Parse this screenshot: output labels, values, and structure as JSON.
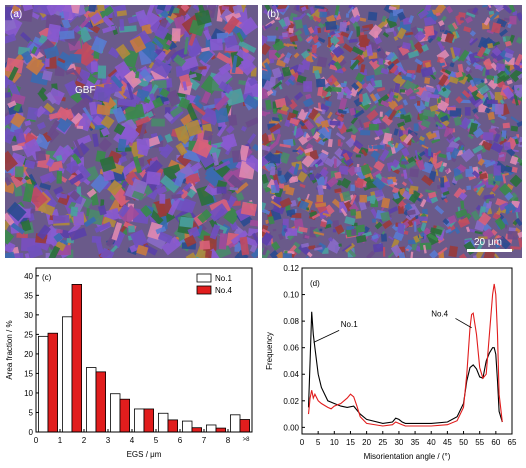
{
  "panels": {
    "a_label": "(a)",
    "a_annotation": "GBF",
    "b_label": "(b)",
    "b_scalebar": "20 μm"
  },
  "chart_data": [
    {
      "type": "bar",
      "panel_label": "(c)",
      "xlabel": "EGS / μm",
      "ylabel": "Area fraction / %",
      "categories": [
        "0-1",
        "1-2",
        "2-3",
        "3-4",
        "4-5",
        "5-6",
        "6-7",
        "7-8",
        ">8"
      ],
      "x_ticks": [
        "0",
        "1",
        "2",
        "3",
        "4",
        "5",
        "6",
        "7",
        "8"
      ],
      "x_extra_tick": ">8",
      "y_ticks": [
        "0",
        "5",
        "10",
        "15",
        "20",
        "25",
        "30",
        "35",
        "40"
      ],
      "ylim": [
        0,
        42
      ],
      "xlim": [
        0,
        9
      ],
      "legend_position": "top-right",
      "series": [
        {
          "name": "No.1",
          "color": "#ffffff",
          "values": [
            24.5,
            29.5,
            16.5,
            9.8,
            5.9,
            4.8,
            2.8,
            1.8,
            4.4
          ]
        },
        {
          "name": "No.4",
          "color": "#e11d1d",
          "values": [
            25.3,
            37.8,
            15.4,
            8.4,
            5.9,
            3.1,
            1.1,
            1.0,
            3.2
          ]
        }
      ]
    },
    {
      "type": "line",
      "panel_label": "(d)",
      "xlabel": "Misorientation angle / (°)",
      "ylabel": "Frequency",
      "x_ticks": [
        "0",
        "5",
        "10",
        "15",
        "20",
        "25",
        "30",
        "35",
        "40",
        "45",
        "50",
        "55",
        "60",
        "65"
      ],
      "y_ticks": [
        "0.00",
        "0.02",
        "0.04",
        "0.06",
        "0.08",
        "0.10",
        "0.12"
      ],
      "xlim": [
        0,
        65
      ],
      "ylim": [
        -0.005,
        0.12
      ],
      "series": [
        {
          "name": "No.1",
          "color": "#000000",
          "x": [
            2,
            2.5,
            3,
            3.5,
            4,
            5,
            6,
            8,
            10,
            12,
            14,
            16,
            18,
            20,
            25,
            28,
            29,
            30,
            31,
            32,
            35,
            40,
            45,
            48,
            50,
            51,
            52,
            53,
            54,
            55,
            56,
            57,
            58,
            59,
            59.5,
            60,
            60.5,
            61,
            62
          ],
          "y": [
            0.015,
            0.05,
            0.087,
            0.07,
            0.06,
            0.04,
            0.03,
            0.02,
            0.018,
            0.016,
            0.015,
            0.016,
            0.01,
            0.006,
            0.003,
            0.004,
            0.007,
            0.006,
            0.004,
            0.003,
            0.003,
            0.003,
            0.004,
            0.008,
            0.018,
            0.035,
            0.045,
            0.047,
            0.044,
            0.038,
            0.037,
            0.05,
            0.056,
            0.06,
            0.06,
            0.055,
            0.035,
            0.012,
            0.004
          ]
        },
        {
          "name": "No.4",
          "color": "#e11d1d",
          "x": [
            2,
            2.5,
            3,
            3.5,
            4,
            5,
            6,
            8,
            9,
            10,
            12,
            14,
            15,
            16,
            17,
            18,
            20,
            25,
            28,
            29,
            30,
            31,
            32,
            35,
            40,
            45,
            48,
            50,
            51,
            52,
            52.5,
            53,
            54,
            55,
            56,
            57,
            58,
            59,
            59.5,
            60,
            60.5,
            61,
            62
          ],
          "y": [
            0.01,
            0.022,
            0.028,
            0.022,
            0.025,
            0.02,
            0.018,
            0.015,
            0.014,
            0.016,
            0.018,
            0.022,
            0.025,
            0.023,
            0.016,
            0.008,
            0.003,
            0.001,
            0.002,
            0.004,
            0.003,
            0.002,
            0.001,
            0.001,
            0.001,
            0.002,
            0.005,
            0.015,
            0.04,
            0.075,
            0.085,
            0.086,
            0.07,
            0.045,
            0.037,
            0.04,
            0.07,
            0.1,
            0.108,
            0.1,
            0.07,
            0.025,
            0.004
          ]
        }
      ],
      "annotations": [
        "No.1",
        "No.4"
      ]
    }
  ]
}
